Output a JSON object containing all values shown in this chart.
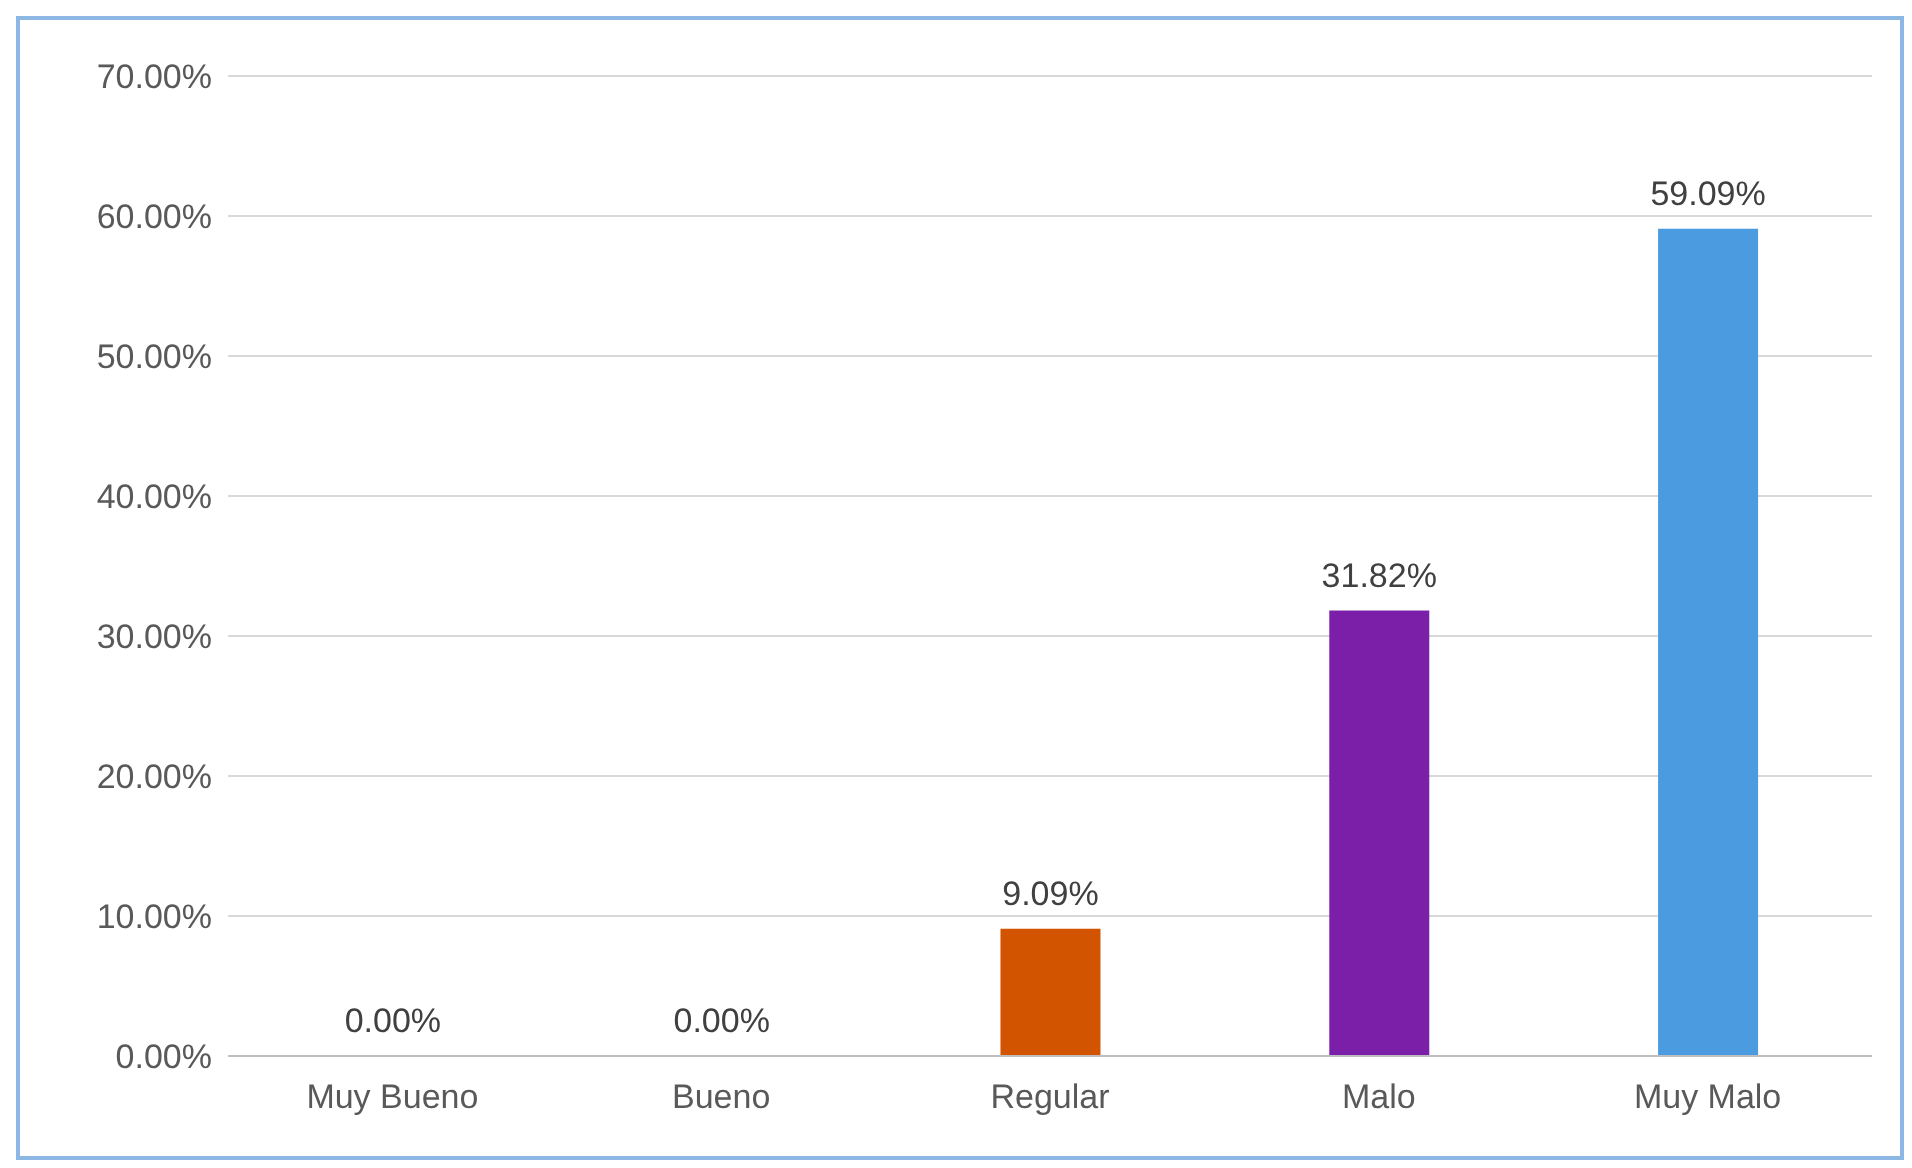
{
  "chart_data": {
    "type": "bar",
    "categories": [
      "Muy Bueno",
      "Bueno",
      "Regular",
      "Malo",
      "Muy Malo"
    ],
    "values": [
      0,
      0,
      9.09,
      31.82,
      59.09
    ],
    "colors": [
      "#d35400",
      "#d35400",
      "#d35400",
      "#7b1fa8",
      "#4a9be0"
    ],
    "value_labels": [
      "0.00%",
      "0.00%",
      "9.09%",
      "31.82%",
      "59.09%"
    ],
    "ylim": [
      0,
      70
    ],
    "yticks": [
      {
        "value": 0,
        "label": "0.00%"
      },
      {
        "value": 10,
        "label": "10.00%"
      },
      {
        "value": 20,
        "label": "20.00%"
      },
      {
        "value": 30,
        "label": "30.00%"
      },
      {
        "value": 40,
        "label": "40.00%"
      },
      {
        "value": 50,
        "label": "50.00%"
      },
      {
        "value": 60,
        "label": "60.00%"
      },
      {
        "value": 70,
        "label": "70.00%"
      }
    ],
    "grid": "y"
  }
}
